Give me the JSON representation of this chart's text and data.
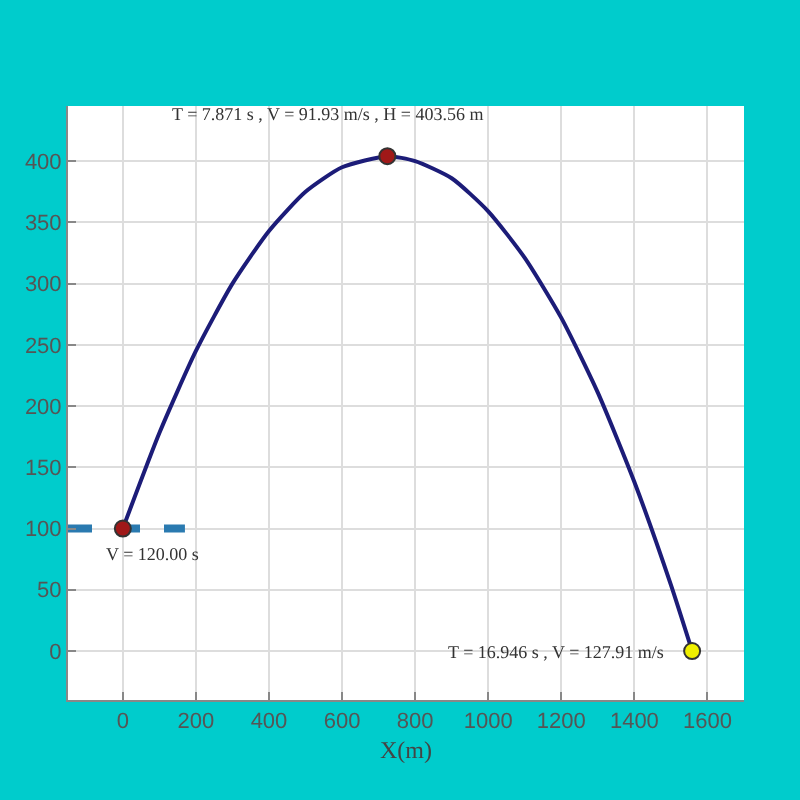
{
  "chart_data": {
    "type": "line",
    "xlabel": "X(m)",
    "xlim": [
      -150,
      1700
    ],
    "ylim": [
      -40,
      445
    ],
    "xticks": [
      0,
      200,
      400,
      600,
      800,
      1000,
      1200,
      1400,
      1600
    ],
    "yticks": [
      0,
      50,
      100,
      150,
      200,
      250,
      300,
      350,
      400
    ],
    "grid": true,
    "series": [
      {
        "color": "#1c1c78",
        "marker": "none",
        "line_style": "solid",
        "x": [
          0,
          100,
          200,
          300,
          400,
          500,
          600,
          724,
          800,
          900,
          1000,
          1100,
          1200,
          1300,
          1400,
          1500,
          1558
        ],
        "values": [
          100,
          178,
          245,
          300,
          343,
          375,
          395,
          404,
          400,
          386,
          359,
          321,
          272,
          211,
          138,
          54,
          0
        ]
      },
      {
        "type": "line",
        "color": "#2a7ab0",
        "marker": "none",
        "line_style": "dashed",
        "x": [
          -150,
          170
        ],
        "values": [
          100,
          100
        ]
      },
      {
        "type": "scatter",
        "color": "#a01818",
        "marker": "circle",
        "x": [
          0,
          724
        ],
        "values": [
          100,
          404
        ]
      },
      {
        "type": "scatter",
        "color": "#f0f000",
        "marker": "circle",
        "x": [
          1558
        ],
        "values": [
          0
        ]
      }
    ],
    "annotations": [
      {
        "text": "T = 7.871 s , V = 91.93 m/s , H = 403.56 m",
        "x": 724,
        "y": 404
      },
      {
        "text": "V = 120.00 s",
        "x": 0,
        "y": 100
      },
      {
        "text": "T = 16.946 s , V = 127.91 m/s",
        "x": 1558,
        "y": 0
      }
    ]
  }
}
